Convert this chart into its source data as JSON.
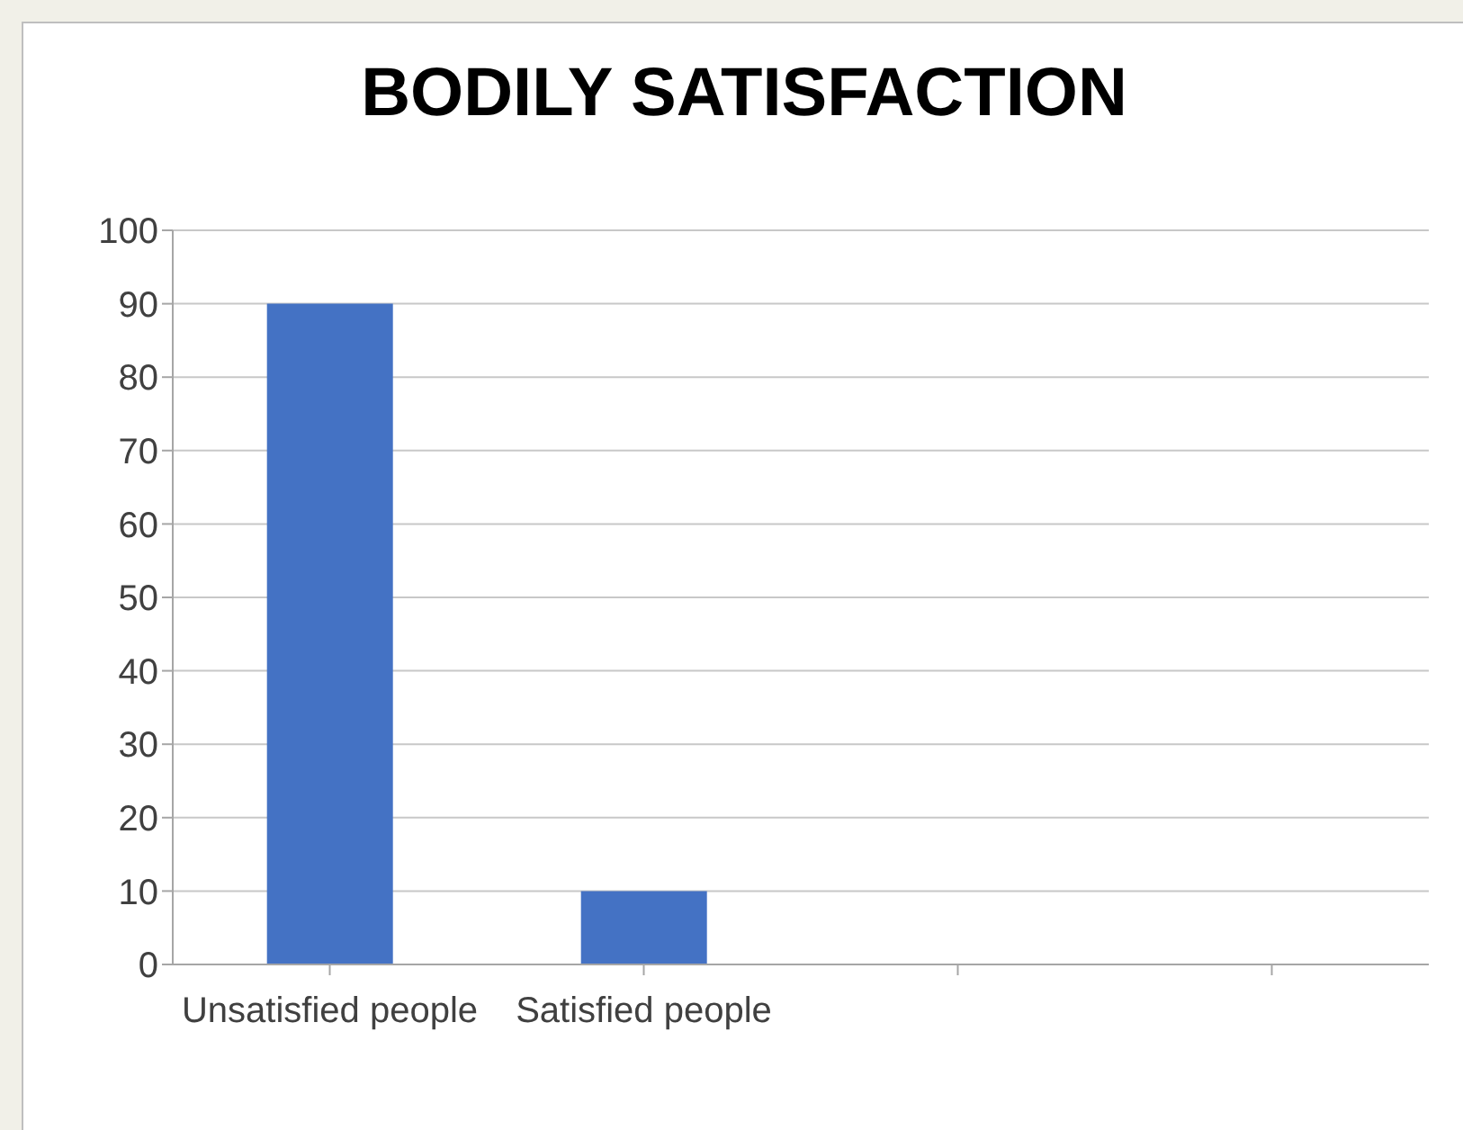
{
  "chart_data": {
    "type": "bar",
    "title": "BODILY SATISFACTION",
    "categories": [
      "Unsatisfied people",
      "Satisfied people",
      null,
      null
    ],
    "values": [
      90,
      10,
      null,
      null
    ],
    "color": "#4472c4",
    "ylim": [
      0,
      100
    ],
    "yticks": [
      0,
      10,
      20,
      30,
      40,
      50,
      60,
      70,
      80,
      90,
      100
    ],
    "grid": "y",
    "legend": false
  }
}
